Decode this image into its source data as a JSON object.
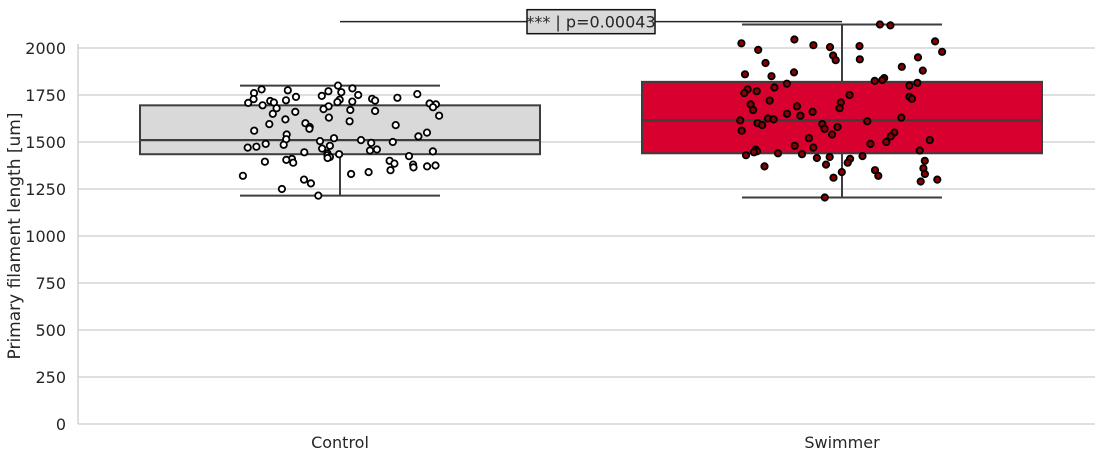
{
  "chart_data": {
    "type": "box",
    "title": "",
    "xlabel": "",
    "ylabel": "Primary filament length [um]",
    "ylim": [
      0,
      2150
    ],
    "yticks": [
      0,
      250,
      500,
      750,
      1000,
      1250,
      1500,
      1750,
      2000
    ],
    "grid": "horizontal",
    "categories": [
      "Control",
      "Swimmer"
    ],
    "series": [
      {
        "category": "Control",
        "color": "#d9d9d9",
        "dot_color": "#ffffff",
        "box": {
          "whisker_low": 1215,
          "q1": 1435,
          "median": 1510,
          "q3": 1695,
          "whisker_high": 1800
        },
        "points": [
          1800,
          1785,
          1780,
          1775,
          1770,
          1765,
          1760,
          1755,
          1750,
          1745,
          1740,
          1735,
          1730,
          1728,
          1725,
          1722,
          1720,
          1718,
          1715,
          1712,
          1710,
          1708,
          1705,
          1700,
          1695,
          1690,
          1685,
          1680,
          1675,
          1670,
          1665,
          1660,
          1650,
          1640,
          1630,
          1620,
          1610,
          1600,
          1595,
          1590,
          1580,
          1570,
          1560,
          1550,
          1540,
          1530,
          1520,
          1515,
          1510,
          1505,
          1500,
          1495,
          1490,
          1485,
          1480,
          1475,
          1470,
          1465,
          1460,
          1455,
          1450,
          1445,
          1440,
          1435,
          1430,
          1425,
          1420,
          1415,
          1410,
          1405,
          1400,
          1395,
          1390,
          1385,
          1380,
          1375,
          1370,
          1365,
          1350,
          1340,
          1330,
          1320,
          1300,
          1280,
          1250,
          1215
        ]
      },
      {
        "category": "Swimmer",
        "color": "#d7002e",
        "dot_color": "#8b0000",
        "box": {
          "whisker_low": 1205,
          "q1": 1440,
          "median": 1615,
          "q3": 1820,
          "whisker_high": 2125
        },
        "points": [
          2125,
          2120,
          2045,
          2035,
          2025,
          2015,
          2010,
          2005,
          1990,
          1980,
          1960,
          1950,
          1940,
          1935,
          1920,
          1900,
          1880,
          1870,
          1860,
          1850,
          1840,
          1830,
          1825,
          1815,
          1810,
          1800,
          1790,
          1780,
          1770,
          1760,
          1750,
          1740,
          1730,
          1720,
          1710,
          1700,
          1690,
          1680,
          1670,
          1660,
          1650,
          1640,
          1630,
          1625,
          1620,
          1615,
          1610,
          1600,
          1595,
          1590,
          1580,
          1570,
          1560,
          1550,
          1540,
          1530,
          1520,
          1510,
          1500,
          1490,
          1480,
          1470,
          1460,
          1455,
          1450,
          1445,
          1440,
          1435,
          1430,
          1425,
          1420,
          1415,
          1410,
          1400,
          1390,
          1380,
          1370,
          1360,
          1350,
          1340,
          1330,
          1320,
          1310,
          1300,
          1290,
          1205
        ]
      }
    ],
    "annotation": {
      "text": "*** | p=0.00043",
      "bracket_y": 2140
    }
  }
}
